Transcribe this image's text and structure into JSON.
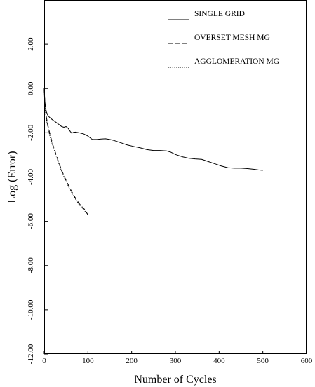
{
  "chart_data": {
    "type": "line",
    "title": "",
    "xlabel": "Number of Cycles",
    "ylabel": "Log (Error)",
    "xlim": [
      0,
      600
    ],
    "ylim": [
      -12,
      4
    ],
    "x_ticks": [
      0,
      100,
      200,
      300,
      400,
      500,
      600
    ],
    "x_tick_labels": [
      "0",
      "100",
      "200",
      "300",
      "400",
      "500",
      "600"
    ],
    "y_ticks": [
      2,
      0,
      -2,
      -4,
      -6,
      -8,
      -10,
      -12
    ],
    "y_tick_labels": [
      "2.00",
      "0.00",
      "-2.00",
      "-4.00",
      "-6.00",
      "-8.00",
      "-10.00",
      "-12.00"
    ],
    "grid": false,
    "legend_position": "top-right",
    "series": [
      {
        "name": "SINGLE GRID",
        "line_style": "solid",
        "x": [
          0,
          1,
          3,
          5,
          8,
          12,
          18,
          25,
          32,
          40,
          45,
          50,
          55,
          60,
          63,
          67,
          72,
          80,
          90,
          100,
          110,
          120,
          130,
          140,
          150,
          160,
          175,
          190,
          205,
          220,
          235,
          250,
          265,
          280,
          290,
          300,
          315,
          330,
          345,
          360,
          375,
          390,
          405,
          420,
          435,
          450,
          465,
          480,
          490,
          500
        ],
        "y": [
          0.0,
          -0.5,
          -0.85,
          -1.05,
          -1.2,
          -1.3,
          -1.4,
          -1.5,
          -1.6,
          -1.72,
          -1.75,
          -1.72,
          -1.8,
          -1.95,
          -2.02,
          -1.98,
          -1.97,
          -2.0,
          -2.05,
          -2.15,
          -2.3,
          -2.3,
          -2.28,
          -2.27,
          -2.3,
          -2.35,
          -2.45,
          -2.55,
          -2.62,
          -2.68,
          -2.76,
          -2.8,
          -2.8,
          -2.82,
          -2.88,
          -2.98,
          -3.08,
          -3.15,
          -3.18,
          -3.2,
          -3.3,
          -3.4,
          -3.5,
          -3.58,
          -3.6,
          -3.6,
          -3.62,
          -3.65,
          -3.68,
          -3.7
        ]
      },
      {
        "name": "OVERSET MESH MG",
        "line_style": "dashed",
        "x": [
          0,
          2,
          5,
          10,
          15,
          20,
          25,
          30,
          40,
          50,
          60,
          70,
          80,
          90,
          95,
          100
        ],
        "y": [
          0.0,
          -0.8,
          -1.3,
          -1.8,
          -2.2,
          -2.55,
          -2.85,
          -3.15,
          -3.7,
          -4.15,
          -4.55,
          -4.9,
          -5.2,
          -5.4,
          -5.55,
          -5.7
        ]
      },
      {
        "name": "AGGLOMERATION MG",
        "line_style": "dotted",
        "x": [
          0,
          2,
          5,
          10,
          15,
          20,
          25,
          30,
          40,
          50,
          60,
          70,
          80,
          90,
          95,
          100
        ],
        "y": [
          0.0,
          -0.9,
          -1.4,
          -1.9,
          -2.3,
          -2.6,
          -2.9,
          -3.2,
          -3.75,
          -4.2,
          -4.6,
          -4.95,
          -5.25,
          -5.45,
          -5.6,
          -5.72
        ]
      }
    ]
  }
}
